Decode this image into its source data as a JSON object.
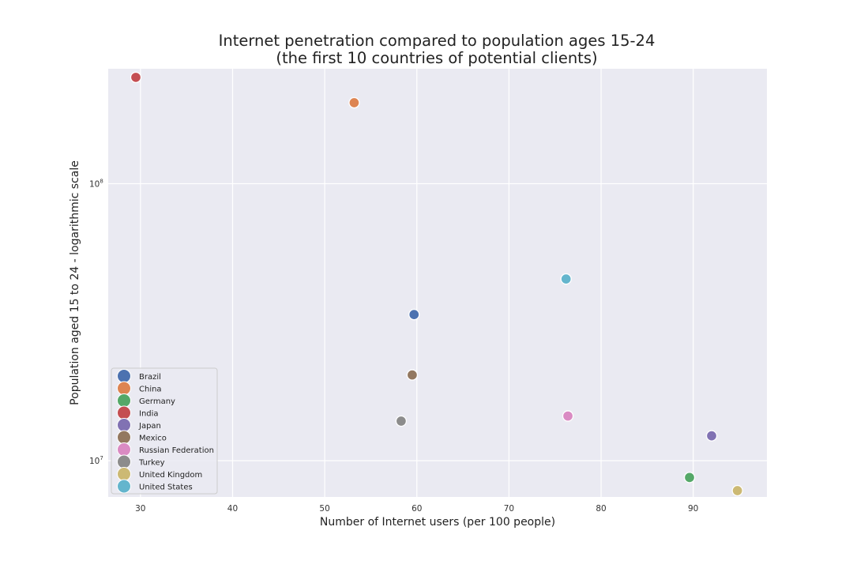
{
  "chart_data": {
    "type": "scatter",
    "title": "Internet penetration compared to population ages 15-24",
    "subtitle": "(the first 10 countries of potential clients)",
    "xlabel": "Number of Internet users (per 100 people)",
    "ylabel": "Population aged 15 to 24 - logarithmic scale",
    "yscale": "log",
    "xlim": [
      26.5,
      98
    ],
    "ylim": [
      7400000,
      260000000
    ],
    "xticks": [
      30,
      40,
      50,
      60,
      70,
      80,
      90
    ],
    "yticks": [
      {
        "value": 10000000,
        "base": "10",
        "exp": "7"
      },
      {
        "value": 100000000,
        "base": "10",
        "exp": "8"
      }
    ],
    "grid": true,
    "legend_position": "lower-left",
    "series": [
      {
        "name": "Brazil",
        "color": "#4c72b0",
        "x": 59.7,
        "y": 33700000
      },
      {
        "name": "China",
        "color": "#dd8452",
        "x": 53.2,
        "y": 196000000
      },
      {
        "name": "Germany",
        "color": "#55a868",
        "x": 89.6,
        "y": 8700000
      },
      {
        "name": "India",
        "color": "#c44e52",
        "x": 29.5,
        "y": 242000000
      },
      {
        "name": "Japan",
        "color": "#8172b3",
        "x": 92.0,
        "y": 12300000
      },
      {
        "name": "Mexico",
        "color": "#937860",
        "x": 59.5,
        "y": 20400000
      },
      {
        "name": "Russian Federation",
        "color": "#da8bc3",
        "x": 76.4,
        "y": 14500000
      },
      {
        "name": "Turkey",
        "color": "#8c8c8c",
        "x": 58.3,
        "y": 13900000
      },
      {
        "name": "United Kingdom",
        "color": "#ccb974",
        "x": 94.8,
        "y": 7800000
      },
      {
        "name": "United States",
        "color": "#64b5cd",
        "x": 76.2,
        "y": 45300000
      }
    ]
  }
}
